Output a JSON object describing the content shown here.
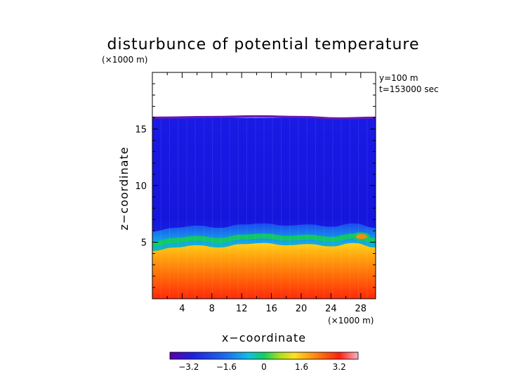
{
  "chart_data": {
    "type": "heatmap",
    "title": "disturbunce of potential temperature",
    "ylabel": "z−coordinate",
    "xlabel": "x−coordinate",
    "y_unit": "(×1000 m)",
    "x_unit": "(×1000 m)",
    "annotations": [
      "y=100 m",
      "t=153000 sec"
    ],
    "xlim": [
      0,
      30
    ],
    "ylim": [
      0,
      20
    ],
    "x_ticks": [
      4,
      8,
      12,
      16,
      20,
      24,
      28
    ],
    "x_tick_labels": [
      "4",
      "8",
      "12",
      "16",
      "20",
      "24",
      "28"
    ],
    "y_ticks": [
      5,
      10,
      15
    ],
    "y_tick_labels": [
      "5",
      "10",
      "15"
    ],
    "colorbar": {
      "range": [
        -4.0,
        4.0
      ],
      "ticks": [
        -3.2,
        -1.6,
        0,
        1.6,
        3.2
      ],
      "tick_labels": [
        "−3.2",
        "−1.6",
        "0",
        "1.6",
        "3.2"
      ],
      "colormap": "rainbow (violet-blue-cyan-green-yellow-red-pink)"
    },
    "field": {
      "top_of_data_km": 16.0,
      "transition_height_km": [
        {
          "x": 0,
          "z": 4.6
        },
        {
          "x": 3,
          "z": 4.9
        },
        {
          "x": 6,
          "z": 5.1
        },
        {
          "x": 9,
          "z": 4.9
        },
        {
          "x": 12,
          "z": 5.2
        },
        {
          "x": 15,
          "z": 5.3
        },
        {
          "x": 18,
          "z": 5.1
        },
        {
          "x": 21,
          "z": 5.2
        },
        {
          "x": 24,
          "z": 5.0
        },
        {
          "x": 27,
          "z": 5.3
        },
        {
          "x": 30,
          "z": 4.9
        }
      ],
      "upper_layer_value": -2.7,
      "lower_layer_surface_value": 3.2,
      "lower_layer_transition_value": 1.2
    },
    "grid": false
  }
}
